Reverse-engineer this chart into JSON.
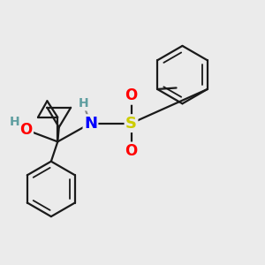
{
  "bg_color": "#ebebeb",
  "bond_color": "#1a1a1a",
  "atom_colors": {
    "O": "#ff0000",
    "N": "#0000ff",
    "S": "#cccc00",
    "H": "#5f9ea0",
    "C": "#1a1a1a"
  },
  "lw": 1.6,
  "dbo": 0.012
}
